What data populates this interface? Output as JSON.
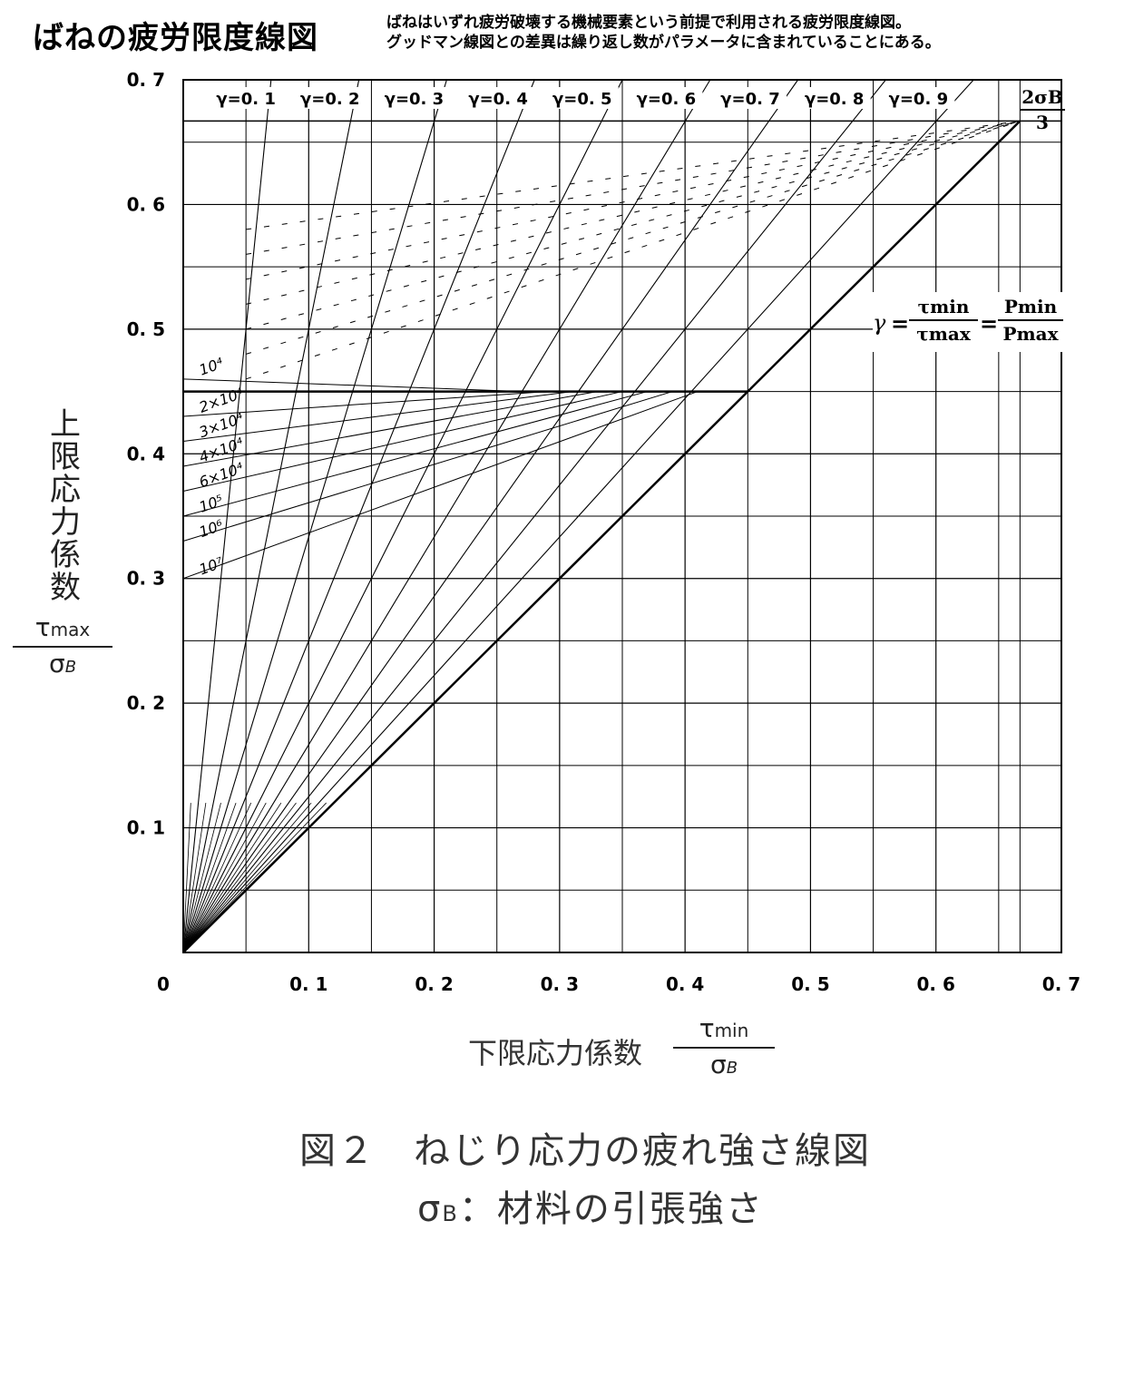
{
  "header": {
    "title": "ばねの疲労限度線図",
    "description_line1": "ばねはいずれ疲労破壊する機械要素という前提で利用される疲労限度線図。",
    "description_line2": "グッドマン線図との差異は繰り返し数がパラメータに含まれていることにある。"
  },
  "axes": {
    "y_label_jp": [
      "上",
      "限",
      "応",
      "力",
      "係",
      "数"
    ],
    "y_frac_num": "τ",
    "y_frac_num_sub": "max",
    "y_frac_den": "σ",
    "y_frac_den_sub": "B",
    "x_label_jp": "下限応力係数",
    "x_frac_num": "τ",
    "x_frac_num_sub": "min",
    "x_frac_den": "σ",
    "x_frac_den_sub": "B"
  },
  "formula": {
    "gamma": "γ",
    "eq": "=",
    "num1": "τmin",
    "den1": "τmax",
    "num2": "Pmin",
    "den2": "Pmax"
  },
  "limit_label": {
    "num": "2σB",
    "den": "3"
  },
  "caption": {
    "line1": "図２　ねじり応力の疲れ強さ線図",
    "line2_sigma": "σ",
    "line2_sub": "B",
    "line2_rest": "：材料の引張強さ"
  },
  "chart_data": {
    "type": "line",
    "xlim": [
      0,
      0.7
    ],
    "ylim": [
      0,
      0.7
    ],
    "x_ticks": [
      "0",
      "0. 1",
      "0. 2",
      "0. 3",
      "0. 4",
      "0. 5",
      "0. 6",
      "0. 7"
    ],
    "y_ticks": [
      "0. 1",
      "0. 2",
      "0. 3",
      "0. 4",
      "0. 5",
      "0. 6",
      "0. 7"
    ],
    "grid": true,
    "gamma_lines": [
      {
        "label": "γ=0. 1",
        "gamma": 0.1
      },
      {
        "label": "γ=0. 2",
        "gamma": 0.2
      },
      {
        "label": "γ=0. 3",
        "gamma": 0.3
      },
      {
        "label": "γ=0. 4",
        "gamma": 0.4
      },
      {
        "label": "γ=0. 5",
        "gamma": 0.5
      },
      {
        "label": "γ=0. 6",
        "gamma": 0.6
      },
      {
        "label": "γ=0. 7",
        "gamma": 0.7
      },
      {
        "label": "γ=0. 8",
        "gamma": 0.8
      },
      {
        "label": "γ=0. 9",
        "gamma": 0.9
      }
    ],
    "diagonal": {
      "gamma": 1.0,
      "end": 0.667
    },
    "upper_limit": 0.667,
    "yield_limit": 0.45,
    "life_lines": [
      {
        "label": "10⁴",
        "y0": 0.46
      },
      {
        "label": "2×10⁴",
        "y0": 0.43
      },
      {
        "label": "3×10⁴",
        "y0": 0.41
      },
      {
        "label": "4×10⁴",
        "y0": 0.39
      },
      {
        "label": "6×10⁴",
        "y0": 0.37
      },
      {
        "label": "10⁵",
        "y0": 0.35
      },
      {
        "label": "10⁶",
        "y0": 0.33
      },
      {
        "label": "10⁷",
        "y0": 0.3
      }
    ]
  }
}
